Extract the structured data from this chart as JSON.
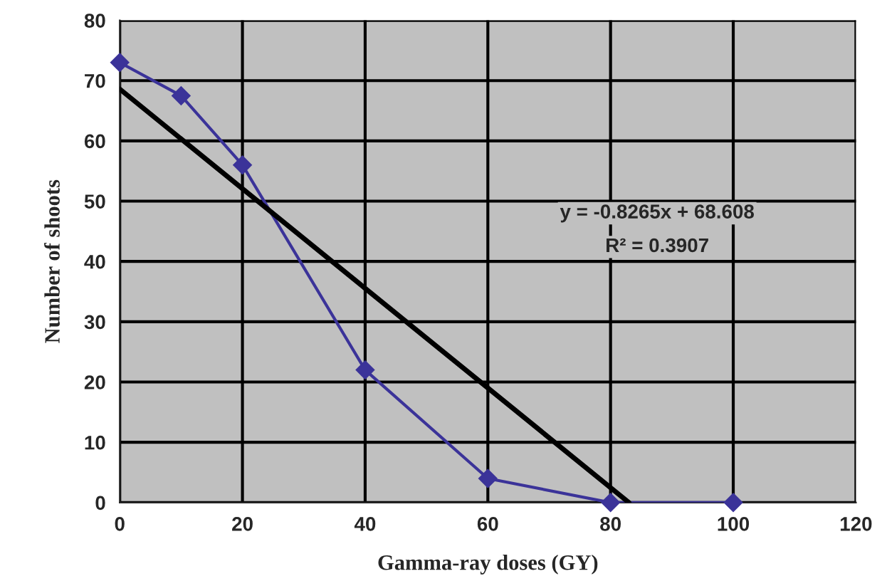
{
  "chart_data": {
    "type": "line",
    "xlabel": "Gamma-ray doses (GY)",
    "ylabel": "Number of shoots",
    "series": [
      {
        "color": "#3b3399",
        "marker": "diamond",
        "x": [
          0,
          10,
          20,
          40,
          60,
          80,
          100
        ],
        "values": [
          73,
          67.5,
          56,
          22,
          4,
          0,
          0
        ]
      },
      {
        "color": "#000000",
        "marker": "none",
        "x": [
          0,
          83
        ],
        "values": [
          68.6,
          0
        ]
      }
    ],
    "annotations": [
      "y = -0.8265x + 68.608",
      "R² = 0.3907"
    ],
    "xlim": [
      0,
      120
    ],
    "xticks": [
      0,
      20,
      40,
      60,
      80,
      100,
      120
    ],
    "ylim": [
      0,
      80
    ],
    "yticks": [
      0,
      10,
      20,
      30,
      40,
      50,
      60,
      70,
      80
    ],
    "grid": true
  }
}
